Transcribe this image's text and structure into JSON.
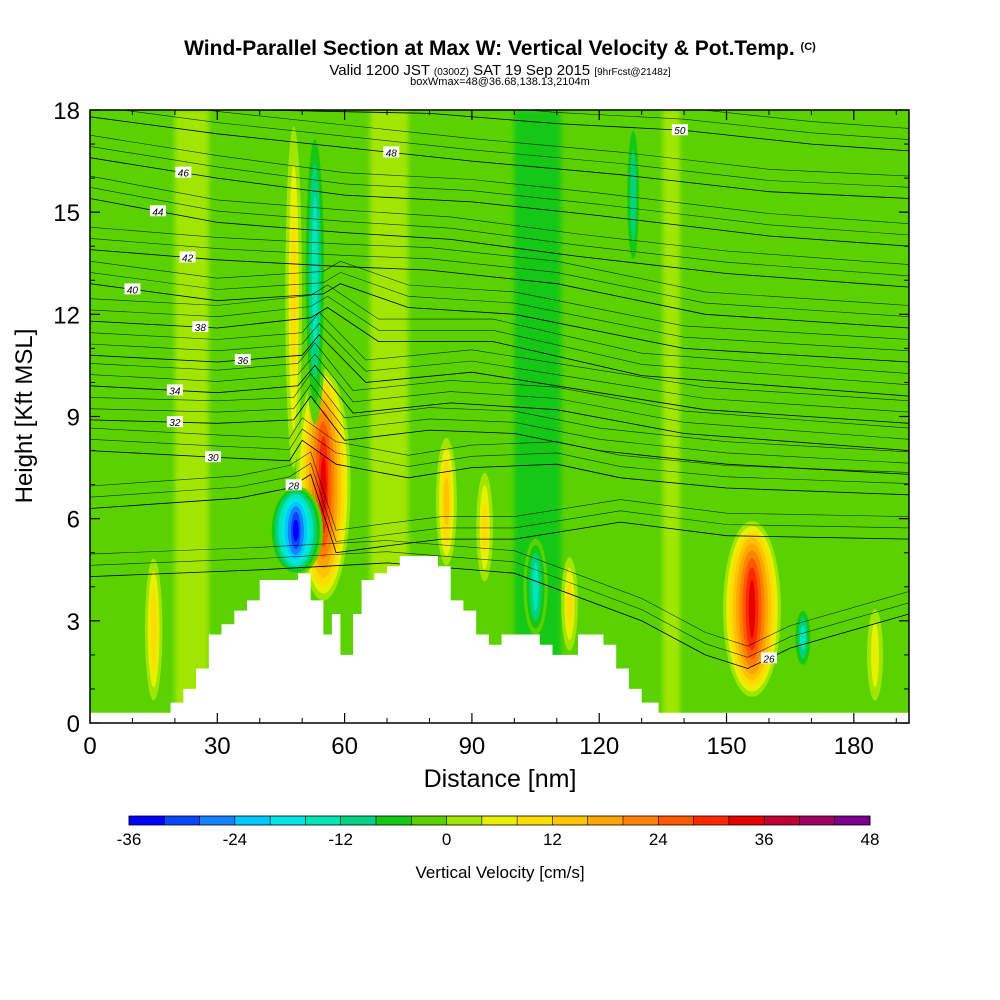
{
  "chart_data": {
    "type": "heatmap",
    "title": "Wind-Parallel Section at Max W: Vertical Velocity & Pot.Temp.",
    "title_mark": "(C)",
    "subtitle_main": "Valid 1200 JST",
    "subtitle_utc": "(0300Z)",
    "subtitle_date": "SAT 19 Sep 2015",
    "subtitle_run": "[9hrFcst@2148z]",
    "subtitle2": "boxWmax=48@36.68,138.13,2104m",
    "xlabel": "Distance [nm]",
    "ylabel": "Height [Kft MSL]",
    "xlim": [
      0,
      193
    ],
    "ylim": [
      0,
      18
    ],
    "x_ticks": [
      "0",
      "30",
      "60",
      "90",
      "120",
      "150",
      "180"
    ],
    "y_ticks": [
      "0",
      "3",
      "6",
      "9",
      "12",
      "15",
      "18"
    ],
    "colorbar": {
      "label": "Vertical Velocity [cm/s]",
      "range": [
        -36,
        48
      ],
      "step": 4,
      "tick_labels": [
        "-36",
        "-24",
        "-12",
        "0",
        "12",
        "24",
        "36",
        "48"
      ],
      "colors": [
        "#0000ff",
        "#0a46ff",
        "#1482ff",
        "#00c8ff",
        "#00e6e6",
        "#00e6b4",
        "#00d282",
        "#14c814",
        "#5ad200",
        "#a0e600",
        "#e6f000",
        "#ffdc00",
        "#ffc300",
        "#ffa500",
        "#ff8200",
        "#ff5a00",
        "#ff2800",
        "#e60000",
        "#be0032",
        "#a00064",
        "#78008c"
      ]
    },
    "updraft_cores": [
      {
        "x": 55,
        "zmin": 3.5,
        "zmax": 10.5,
        "w": 34
      },
      {
        "x": 156,
        "zmin": 0.7,
        "zmax": 6.0,
        "w": 36
      },
      {
        "x": 84,
        "zmin": 4.5,
        "zmax": 8.5,
        "w": 14
      },
      {
        "x": 93,
        "zmin": 4.0,
        "zmax": 7.5,
        "w": 10
      },
      {
        "x": 15,
        "zmin": 0.5,
        "zmax": 5.0,
        "w": 12
      },
      {
        "x": 113,
        "zmin": 2.0,
        "zmax": 5.0,
        "w": 10
      },
      {
        "x": 48,
        "zmin": 7.0,
        "zmax": 18.0,
        "w": 10
      },
      {
        "x": 185,
        "zmin": 0.5,
        "zmax": 3.5,
        "w": 8
      }
    ],
    "downdraft_cores": [
      {
        "x": 48.5,
        "zmin": 4.3,
        "zmax": 7.0,
        "w": -34
      },
      {
        "x": 53,
        "zmin": 8.5,
        "zmax": 18.0,
        "w": -16
      },
      {
        "x": 105,
        "zmin": 2.5,
        "zmax": 5.5,
        "w": -16
      },
      {
        "x": 168,
        "zmin": 1.5,
        "zmax": 3.5,
        "w": -14
      },
      {
        "x": 128,
        "zmin": 13.0,
        "zmax": 18.0,
        "w": -12
      }
    ],
    "terrain": [
      [
        0,
        0.3
      ],
      [
        19,
        0.3
      ],
      [
        19,
        0.6
      ],
      [
        22,
        0.6
      ],
      [
        22,
        1.0
      ],
      [
        25,
        1.0
      ],
      [
        25,
        1.6
      ],
      [
        28,
        1.6
      ],
      [
        28,
        2.6
      ],
      [
        31,
        2.6
      ],
      [
        31,
        2.9
      ],
      [
        34,
        2.9
      ],
      [
        34,
        3.3
      ],
      [
        37,
        3.3
      ],
      [
        37,
        3.6
      ],
      [
        40,
        3.6
      ],
      [
        40,
        4.2
      ],
      [
        49,
        4.2
      ],
      [
        49,
        4.4
      ],
      [
        52,
        4.4
      ],
      [
        52,
        3.6
      ],
      [
        55,
        3.6
      ],
      [
        55,
        2.6
      ],
      [
        57,
        2.6
      ],
      [
        57,
        3.2
      ],
      [
        59,
        3.2
      ],
      [
        59,
        2.0
      ],
      [
        62,
        2.0
      ],
      [
        62,
        3.2
      ],
      [
        64,
        3.2
      ],
      [
        64,
        4.2
      ],
      [
        67,
        4.2
      ],
      [
        67,
        4.4
      ],
      [
        70,
        4.4
      ],
      [
        70,
        4.6
      ],
      [
        73,
        4.6
      ],
      [
        73,
        4.9
      ],
      [
        82,
        4.9
      ],
      [
        82,
        4.6
      ],
      [
        85,
        4.6
      ],
      [
        85,
        3.6
      ],
      [
        88,
        3.6
      ],
      [
        88,
        3.3
      ],
      [
        91,
        3.3
      ],
      [
        91,
        2.6
      ],
      [
        94,
        2.6
      ],
      [
        94,
        2.3
      ],
      [
        97,
        2.3
      ],
      [
        97,
        2.6
      ],
      [
        106,
        2.6
      ],
      [
        106,
        2.3
      ],
      [
        109,
        2.3
      ],
      [
        109,
        2.0
      ],
      [
        115,
        2.0
      ],
      [
        115,
        2.6
      ],
      [
        121,
        2.6
      ],
      [
        121,
        2.3
      ],
      [
        124,
        2.3
      ],
      [
        124,
        1.6
      ],
      [
        127,
        1.6
      ],
      [
        127,
        1.0
      ],
      [
        130,
        1.0
      ],
      [
        130,
        0.6
      ],
      [
        134,
        0.6
      ],
      [
        134,
        0.3
      ],
      [
        193,
        0.3
      ]
    ],
    "isentropes": [
      {
        "theta": 26,
        "label": "26",
        "label_x": 160,
        "pts": [
          [
            0,
            4.3
          ],
          [
            40,
            4.5
          ],
          [
            70,
            4.7
          ],
          [
            100,
            4.4
          ],
          [
            130,
            3.0
          ],
          [
            145,
            2.0
          ],
          [
            155,
            1.6
          ],
          [
            165,
            2.2
          ],
          [
            193,
            3.2
          ]
        ]
      },
      {
        "theta": 28,
        "label": "28",
        "label_x": 48,
        "pts": [
          [
            0,
            6.3
          ],
          [
            35,
            6.6
          ],
          [
            47,
            6.9
          ],
          [
            52,
            7.3
          ],
          [
            58,
            5.0
          ],
          [
            70,
            5.2
          ],
          [
            83,
            5.4
          ],
          [
            100,
            5.4
          ],
          [
            125,
            5.9
          ],
          [
            150,
            5.5
          ],
          [
            193,
            5.4
          ]
        ]
      },
      {
        "theta": 30,
        "label": "30",
        "label_x": 29,
        "pts": [
          [
            0,
            8.0
          ],
          [
            30,
            7.8
          ],
          [
            47,
            7.7
          ],
          [
            50,
            8.3
          ],
          [
            58,
            7.6
          ],
          [
            75,
            7.2
          ],
          [
            90,
            7.5
          ],
          [
            110,
            7.6
          ],
          [
            125,
            7.2
          ],
          [
            150,
            6.9
          ],
          [
            193,
            6.7
          ]
        ]
      },
      {
        "theta": 32,
        "label": "32",
        "label_x": 20,
        "pts": [
          [
            0,
            8.9
          ],
          [
            30,
            8.8
          ],
          [
            48,
            8.9
          ],
          [
            52,
            9.6
          ],
          [
            60,
            8.3
          ],
          [
            80,
            8.6
          ],
          [
            100,
            8.5
          ],
          [
            120,
            8.0
          ],
          [
            150,
            7.6
          ],
          [
            193,
            7.3
          ]
        ]
      },
      {
        "theta": 34,
        "label": "34",
        "label_x": 20,
        "pts": [
          [
            0,
            9.9
          ],
          [
            30,
            9.7
          ],
          [
            49,
            9.9
          ],
          [
            53,
            10.5
          ],
          [
            62,
            9.1
          ],
          [
            85,
            9.4
          ],
          [
            110,
            9.2
          ],
          [
            140,
            8.5
          ],
          [
            193,
            8.0
          ]
        ]
      },
      {
        "theta": 36,
        "label": "36",
        "label_x": 36,
        "pts": [
          [
            0,
            10.8
          ],
          [
            30,
            10.6
          ],
          [
            50,
            10.8
          ],
          [
            54,
            11.4
          ],
          [
            65,
            10.0
          ],
          [
            90,
            10.3
          ],
          [
            120,
            9.7
          ],
          [
            145,
            9.2
          ],
          [
            193,
            8.8
          ]
        ]
      },
      {
        "theta": 38,
        "label": "38",
        "label_x": 26,
        "pts": [
          [
            0,
            11.8
          ],
          [
            30,
            11.6
          ],
          [
            52,
            11.9
          ],
          [
            56,
            12.2
          ],
          [
            68,
            11.2
          ],
          [
            95,
            11.2
          ],
          [
            130,
            10.2
          ],
          [
            193,
            9.6
          ]
        ]
      },
      {
        "theta": 40,
        "label": "40",
        "label_x": 10,
        "pts": [
          [
            0,
            12.9
          ],
          [
            30,
            12.4
          ],
          [
            55,
            12.6
          ],
          [
            59,
            12.9
          ],
          [
            75,
            12.2
          ],
          [
            100,
            12.0
          ],
          [
            140,
            11.0
          ],
          [
            193,
            10.6
          ]
        ]
      },
      {
        "theta": 42,
        "label": "42",
        "label_x": 23,
        "pts": [
          [
            0,
            13.9
          ],
          [
            30,
            13.6
          ],
          [
            60,
            13.4
          ],
          [
            80,
            13.3
          ],
          [
            110,
            12.9
          ],
          [
            145,
            12.0
          ],
          [
            193,
            11.6
          ]
        ]
      },
      {
        "theta": 44,
        "label": "44",
        "label_x": 16,
        "pts": [
          [
            0,
            15.4
          ],
          [
            30,
            14.7
          ],
          [
            60,
            14.4
          ],
          [
            85,
            14.2
          ],
          [
            115,
            13.7
          ],
          [
            150,
            13.2
          ],
          [
            193,
            12.8
          ]
        ]
      },
      {
        "theta": 46,
        "label": "46",
        "label_x": 22,
        "pts": [
          [
            0,
            16.6
          ],
          [
            30,
            16.0
          ],
          [
            60,
            15.5
          ],
          [
            90,
            15.3
          ],
          [
            120,
            14.9
          ],
          [
            160,
            14.3
          ],
          [
            193,
            14.0
          ]
        ]
      },
      {
        "theta": 48,
        "label": "48",
        "label_x": 71,
        "pts": [
          [
            0,
            17.8
          ],
          [
            30,
            17.3
          ],
          [
            60,
            16.9
          ],
          [
            90,
            16.5
          ],
          [
            125,
            16.1
          ],
          [
            160,
            15.6
          ],
          [
            193,
            15.4
          ]
        ]
      },
      {
        "theta": 50,
        "label": "50",
        "label_x": 139,
        "pts": [
          [
            40,
            18.0
          ],
          [
            80,
            17.9
          ],
          [
            110,
            17.6
          ],
          [
            140,
            17.4
          ],
          [
            170,
            17.0
          ],
          [
            193,
            16.8
          ]
        ]
      }
    ]
  }
}
